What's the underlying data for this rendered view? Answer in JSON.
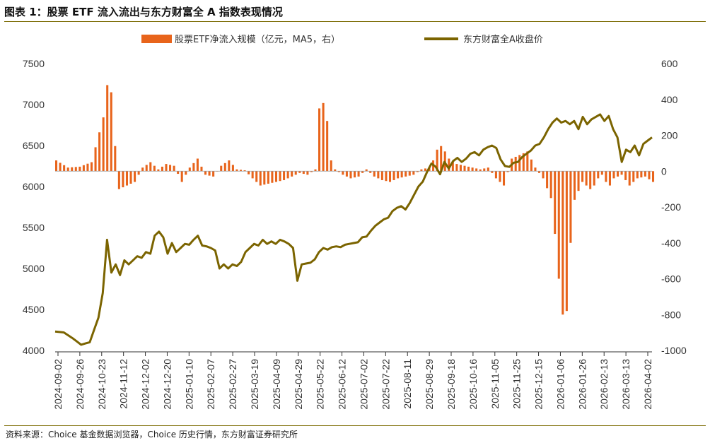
{
  "title": "图表 1：股票 ETF 流入流出与东方财富全 A 指数表现情况",
  "source": "资料来源：Choice 基金数据浏览器，Choice 历史行情，东方财富证券研究所",
  "colors": {
    "bar": "#E8641B",
    "line": "#7B6400",
    "rule": "#7a6a00"
  },
  "chart_data": {
    "type": "bar+line",
    "legend": {
      "placement": "top-center"
    },
    "series": [
      {
        "name": "股票ETF净流入规模（亿元，MA5，右）",
        "kind": "bar",
        "axis": "right"
      },
      {
        "name": "东方财富全A收盘价",
        "kind": "line",
        "axis": "left"
      }
    ],
    "left_axis": {
      "ylim": [
        4000,
        7500
      ],
      "ticks": [
        4000,
        4500,
        5000,
        5500,
        6000,
        6500,
        7000,
        7500
      ]
    },
    "right_axis": {
      "ylim": [
        -1000,
        600
      ],
      "ticks": [
        -1000,
        -800,
        -600,
        -400,
        -200,
        0,
        200,
        400,
        600
      ]
    },
    "x_ticks": [
      "2024-09-02",
      "2024-09-26",
      "2024-10-23",
      "2024-11-12",
      "2024-12-02",
      "2024-12-20",
      "2025-01-10",
      "2025-02-07",
      "2025-02-27",
      "2025-03-19",
      "2025-04-09",
      "2025-04-29",
      "2025-05-22",
      "2025-06-12",
      "2025-07-02",
      "2025-07-22",
      "2025-08-11",
      "2025-08-29",
      "2025-09-18",
      "2025-10-16",
      "2025-11-05",
      "2025-11-25",
      "2025-12-15",
      "2026-01-06",
      "2026-01-26",
      "2026-02-13",
      "2026-03-13",
      "2026-04-02"
    ],
    "line_keypoints": [
      [
        0,
        4230
      ],
      [
        2,
        4220
      ],
      [
        4,
        4150
      ],
      [
        6,
        4070
      ],
      [
        8,
        4100
      ],
      [
        10,
        4400
      ],
      [
        11,
        4700
      ],
      [
        12,
        5350
      ],
      [
        13,
        4950
      ],
      [
        14,
        5050
      ],
      [
        15,
        4920
      ],
      [
        16,
        5100
      ],
      [
        17,
        5050
      ],
      [
        18,
        5100
      ],
      [
        19,
        5150
      ],
      [
        20,
        5130
      ],
      [
        21,
        5200
      ],
      [
        22,
        5180
      ],
      [
        23,
        5400
      ],
      [
        24,
        5450
      ],
      [
        25,
        5380
      ],
      [
        26,
        5180
      ],
      [
        27,
        5310
      ],
      [
        28,
        5200
      ],
      [
        29,
        5250
      ],
      [
        30,
        5300
      ],
      [
        31,
        5290
      ],
      [
        32,
        5350
      ],
      [
        33,
        5400
      ],
      [
        34,
        5280
      ],
      [
        35,
        5270
      ],
      [
        36,
        5250
      ],
      [
        37,
        5220
      ],
      [
        38,
        5000
      ],
      [
        39,
        5050
      ],
      [
        40,
        5000
      ],
      [
        41,
        5050
      ],
      [
        42,
        5030
      ],
      [
        43,
        5080
      ],
      [
        44,
        5200
      ],
      [
        45,
        5250
      ],
      [
        46,
        5300
      ],
      [
        47,
        5280
      ],
      [
        48,
        5350
      ],
      [
        49,
        5300
      ],
      [
        50,
        5330
      ],
      [
        51,
        5300
      ],
      [
        52,
        5350
      ],
      [
        53,
        5330
      ],
      [
        54,
        5300
      ],
      [
        55,
        5250
      ],
      [
        56,
        4850
      ],
      [
        57,
        5050
      ],
      [
        58,
        5060
      ],
      [
        59,
        5070
      ],
      [
        60,
        5110
      ],
      [
        61,
        5200
      ],
      [
        62,
        5250
      ],
      [
        63,
        5230
      ],
      [
        64,
        5260
      ],
      [
        65,
        5270
      ],
      [
        66,
        5260
      ],
      [
        67,
        5290
      ],
      [
        68,
        5300
      ],
      [
        69,
        5310
      ],
      [
        70,
        5320
      ],
      [
        71,
        5380
      ],
      [
        72,
        5390
      ],
      [
        73,
        5460
      ],
      [
        74,
        5520
      ],
      [
        75,
        5560
      ],
      [
        76,
        5600
      ],
      [
        77,
        5620
      ],
      [
        78,
        5700
      ],
      [
        79,
        5740
      ],
      [
        80,
        5760
      ],
      [
        81,
        5720
      ],
      [
        82,
        5800
      ],
      [
        83,
        5900
      ],
      [
        84,
        6000
      ],
      [
        85,
        6060
      ],
      [
        86,
        6180
      ],
      [
        87,
        6280
      ],
      [
        88,
        6240
      ],
      [
        89,
        6150
      ],
      [
        90,
        6300
      ],
      [
        91,
        6220
      ],
      [
        92,
        6310
      ],
      [
        93,
        6350
      ],
      [
        94,
        6300
      ],
      [
        95,
        6340
      ],
      [
        96,
        6400
      ],
      [
        97,
        6420
      ],
      [
        98,
        6380
      ],
      [
        99,
        6450
      ],
      [
        100,
        6480
      ],
      [
        101,
        6500
      ],
      [
        102,
        6470
      ],
      [
        103,
        6330
      ],
      [
        104,
        6250
      ],
      [
        105,
        6240
      ],
      [
        106,
        6290
      ],
      [
        107,
        6300
      ],
      [
        108,
        6360
      ],
      [
        109,
        6400
      ],
      [
        110,
        6440
      ],
      [
        111,
        6500
      ],
      [
        112,
        6520
      ],
      [
        113,
        6600
      ],
      [
        114,
        6700
      ],
      [
        115,
        6780
      ],
      [
        116,
        6830
      ],
      [
        117,
        6780
      ],
      [
        118,
        6800
      ],
      [
        119,
        6760
      ],
      [
        120,
        6800
      ],
      [
        121,
        6700
      ],
      [
        122,
        6850
      ],
      [
        123,
        6760
      ],
      [
        124,
        6820
      ],
      [
        125,
        6850
      ],
      [
        126,
        6880
      ],
      [
        127,
        6800
      ],
      [
        128,
        6860
      ],
      [
        129,
        6700
      ],
      [
        130,
        6600
      ],
      [
        131,
        6300
      ],
      [
        132,
        6450
      ],
      [
        133,
        6420
      ],
      [
        134,
        6500
      ],
      [
        135,
        6380
      ],
      [
        136,
        6520
      ],
      [
        137,
        6560
      ],
      [
        138,
        6600
      ]
    ],
    "bar_keypoints": [
      [
        0,
        60
      ],
      [
        3,
        20
      ],
      [
        6,
        25
      ],
      [
        9,
        50
      ],
      [
        12,
        300
      ],
      [
        13,
        480
      ],
      [
        14,
        440
      ],
      [
        15,
        140
      ],
      [
        16,
        -100
      ],
      [
        18,
        -80
      ],
      [
        20,
        -60
      ],
      [
        22,
        20
      ],
      [
        24,
        50
      ],
      [
        26,
        10
      ],
      [
        28,
        40
      ],
      [
        30,
        30
      ],
      [
        32,
        -60
      ],
      [
        34,
        20
      ],
      [
        36,
        70
      ],
      [
        38,
        -20
      ],
      [
        40,
        -30
      ],
      [
        42,
        30
      ],
      [
        44,
        60
      ],
      [
        46,
        10
      ],
      [
        48,
        5
      ],
      [
        50,
        -40
      ],
      [
        52,
        -80
      ],
      [
        54,
        -70
      ],
      [
        56,
        -60
      ],
      [
        58,
        -50
      ],
      [
        60,
        -30
      ],
      [
        62,
        -10
      ],
      [
        64,
        -20
      ],
      [
        66,
        10
      ],
      [
        67,
        350
      ],
      [
        68,
        380
      ],
      [
        69,
        280
      ],
      [
        70,
        60
      ],
      [
        71,
        10
      ],
      [
        73,
        -20
      ],
      [
        75,
        -40
      ],
      [
        77,
        -30
      ],
      [
        79,
        10
      ],
      [
        81,
        -30
      ],
      [
        83,
        -50
      ],
      [
        85,
        -60
      ],
      [
        87,
        -40
      ],
      [
        89,
        -30
      ],
      [
        91,
        -20
      ],
      [
        93,
        10
      ],
      [
        95,
        20
      ],
      [
        96,
        60
      ],
      [
        97,
        120
      ],
      [
        98,
        140
      ],
      [
        99,
        110
      ],
      [
        100,
        70
      ],
      [
        102,
        40
      ],
      [
        104,
        30
      ],
      [
        106,
        20
      ],
      [
        108,
        10
      ],
      [
        110,
        20
      ],
      [
        112,
        -40
      ],
      [
        114,
        -80
      ],
      [
        116,
        70
      ],
      [
        118,
        90
      ],
      [
        120,
        110
      ],
      [
        122,
        20
      ],
      [
        124,
        -40
      ],
      [
        126,
        -150
      ],
      [
        127,
        -350
      ],
      [
        128,
        -600
      ],
      [
        129,
        -800
      ],
      [
        130,
        -780
      ],
      [
        131,
        -400
      ],
      [
        132,
        -160
      ],
      [
        134,
        -60
      ],
      [
        136,
        -100
      ],
      [
        137,
        -80
      ],
      [
        138,
        -40
      ],
      [
        139,
        -20
      ],
      [
        140,
        -60
      ],
      [
        141,
        -80
      ],
      [
        142,
        -40
      ],
      [
        144,
        -20
      ],
      [
        146,
        -80
      ],
      [
        148,
        -40
      ],
      [
        150,
        -30
      ],
      [
        152,
        -60
      ]
    ]
  }
}
